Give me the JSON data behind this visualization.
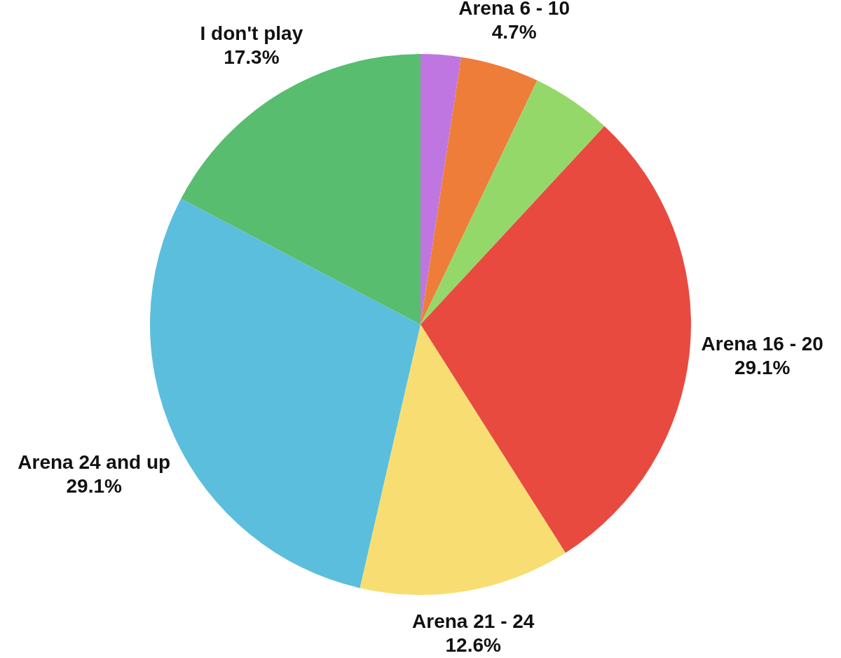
{
  "chart_data": {
    "type": "pie",
    "categories": [
      null,
      "Arena 6 - 10",
      null,
      "Arena 16 - 20",
      "Arena 21 - 24",
      "Arena 24 and up",
      "I don't play"
    ],
    "values": [
      2.4,
      4.7,
      4.8,
      29.1,
      12.6,
      29.1,
      17.3
    ],
    "value_labels": [
      null,
      "4.7%",
      null,
      "29.1%",
      "12.6%",
      "29.1%",
      "17.3%"
    ],
    "colors": [
      "#c076e0",
      "#ee7d3a",
      "#95d86a",
      "#e84a40",
      "#f8de72",
      "#5bbedc",
      "#58bd6f"
    ],
    "legend": false
  }
}
